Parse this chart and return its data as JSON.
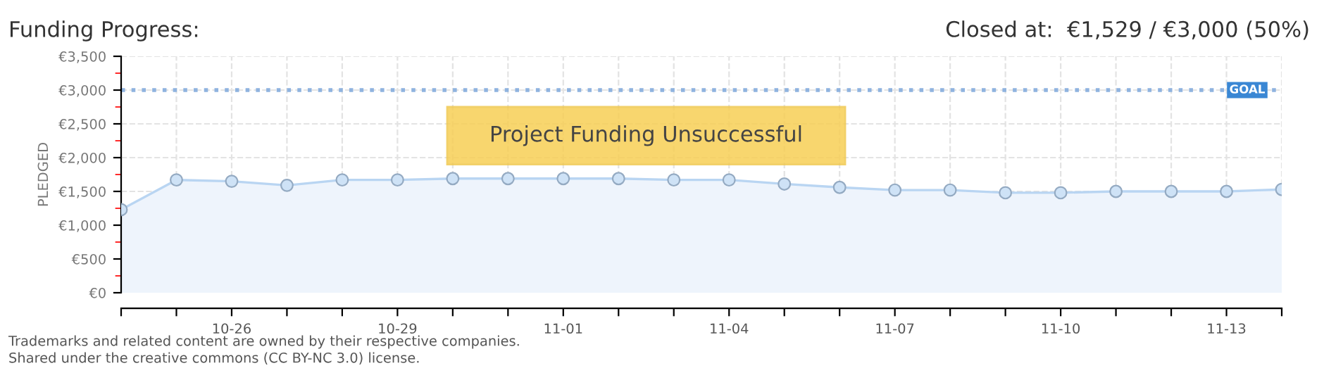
{
  "chart_data": {
    "type": "area",
    "title": "Funding Progress:",
    "subtitle": "Closed at:  €1,529 / €3,000 (50%)",
    "ylabel": "PLEDGED",
    "categories": [
      null,
      null,
      "10-26",
      null,
      null,
      "10-29",
      null,
      null,
      "11-01",
      null,
      null,
      "11-04",
      null,
      null,
      "11-07",
      null,
      null,
      "11-10",
      null,
      null,
      "11-13",
      null
    ],
    "series": [
      {
        "color": "#b9d5f2",
        "values": [
          1230,
          1670,
          1650,
          1590,
          1670,
          1670,
          1690,
          1690,
          1690,
          1690,
          1670,
          1670,
          1610,
          1560,
          1520,
          1520,
          1480,
          1480,
          1500,
          1500,
          1500,
          1529
        ]
      }
    ],
    "ylim": [
      0,
      3500
    ],
    "yticks": [
      {
        "value": 0,
        "label": "€0"
      },
      {
        "value": 500,
        "label": "€500"
      },
      {
        "value": 1000,
        "label": "€1,000"
      },
      {
        "value": 1500,
        "label": "€1,500"
      },
      {
        "value": 2000,
        "label": "€2,000"
      },
      {
        "value": 2500,
        "label": "€2,500"
      },
      {
        "value": 3000,
        "label": "€3,000"
      },
      {
        "value": 3500,
        "label": "€3,500"
      }
    ],
    "ref_lines": [
      {
        "axis": "y",
        "value": 3000,
        "label": "GOAL",
        "color": "#8fb3df",
        "line_style": "dotted"
      }
    ],
    "annotations": [
      "Project Funding Unsuccessful",
      "Trademarks and related content are owned by their respective companies.",
      "Shared under the creative commons (CC BY-NC 3.0) license."
    ],
    "grid": true,
    "marker": "circle"
  }
}
